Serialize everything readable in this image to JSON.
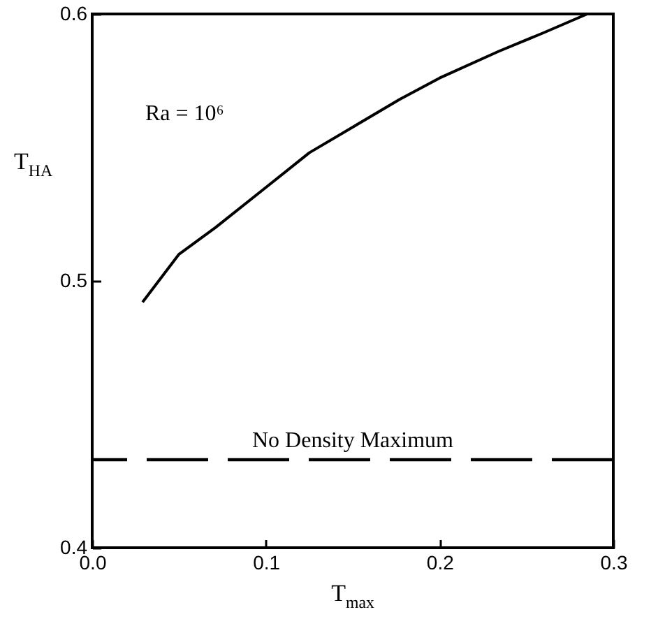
{
  "chart_data": {
    "type": "line",
    "xlabel": "T$_{max}$",
    "ylabel": "T$_{HA}$",
    "x": [
      0.029,
      0.05,
      0.071,
      0.1,
      0.125,
      0.151,
      0.177,
      0.2,
      0.234,
      0.26,
      0.285
    ],
    "series": [
      {
        "color": "#000000",
        "values": [
          0.492,
          0.51,
          0.52,
          0.535,
          0.548,
          0.558,
          0.568,
          0.576,
          0.586,
          0.593,
          0.6
        ]
      }
    ],
    "xlim": [
      0.0,
      0.3
    ],
    "xticks": [
      {
        "value": 0,
        "label": "0.0"
      },
      0.1,
      0.2,
      0.3
    ],
    "ylim": [
      0.4,
      0.6
    ],
    "yticks": [
      0.4,
      0.5,
      0.6
    ],
    "ref_lines": [
      {
        "axis": "y",
        "value": 0.433,
        "label": "No Density Maximum",
        "line_style": "dashed",
        "color": "#000000"
      }
    ],
    "annotations": [
      "Ra = 10⁶"
    ],
    "grid": false,
    "marker": "none",
    "line_style": "solid"
  }
}
